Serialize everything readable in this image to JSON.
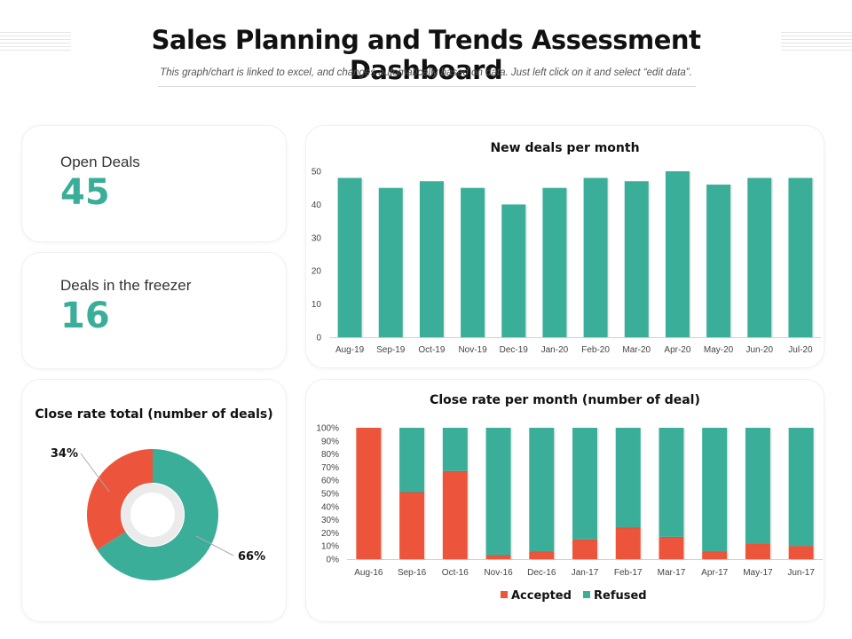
{
  "header": {
    "title": "Sales Planning and Trends Assessment Dashboard",
    "subtitle": "This graph/chart is linked to excel, and changes automatically based on data. Just left click on it and select “edit data”."
  },
  "kpis": {
    "open_deals": {
      "label": "Open Deals",
      "value": "45"
    },
    "freezer": {
      "label": "Deals in the freezer",
      "value": "16"
    }
  },
  "colors": {
    "teal": "#3aae98",
    "red": "#ec553b"
  },
  "chart_data": [
    {
      "id": "new-deals",
      "type": "bar",
      "title": "New deals per month",
      "categories": [
        "Aug-19",
        "Sep-19",
        "Oct-19",
        "Nov-19",
        "Dec-19",
        "Jan-20",
        "Feb-20",
        "Mar-20",
        "Apr-20",
        "May-20",
        "Jun-20",
        "Jul-20"
      ],
      "values": [
        48,
        45,
        47,
        45,
        40,
        45,
        48,
        47,
        50,
        46,
        48,
        48
      ],
      "ylim": [
        0,
        50
      ],
      "yticks": [
        "0",
        "10",
        "20",
        "30",
        "40",
        "50"
      ]
    },
    {
      "id": "close-rate-total",
      "type": "pie",
      "title": "Close rate total (number of deals)",
      "slices": [
        {
          "name": "Accepted",
          "value": 34,
          "label": "34%"
        },
        {
          "name": "Refused",
          "value": 66,
          "label": "66%"
        }
      ]
    },
    {
      "id": "close-rate-month",
      "type": "bar",
      "stacked": true,
      "title": "Close rate per month (number of deal)",
      "categories": [
        "Aug-16",
        "Sep-16",
        "Oct-16",
        "Nov-16",
        "Dec-16",
        "Jan-17",
        "Feb-17",
        "Mar-17",
        "Apr-17",
        "May-17",
        "Jun-17"
      ],
      "series": [
        {
          "name": "Accepted",
          "values": [
            100,
            51,
            67,
            3,
            6,
            15,
            24,
            17,
            6,
            12,
            10
          ]
        },
        {
          "name": "Refused",
          "values": [
            0,
            49,
            33,
            97,
            94,
            85,
            76,
            83,
            94,
            88,
            90
          ]
        }
      ],
      "ylim": [
        0,
        100
      ],
      "yticks": [
        "0%",
        "10%",
        "20%",
        "30%",
        "40%",
        "50%",
        "60%",
        "70%",
        "80%",
        "90%",
        "100%"
      ],
      "legend": [
        "Accepted",
        "Refused"
      ]
    }
  ]
}
